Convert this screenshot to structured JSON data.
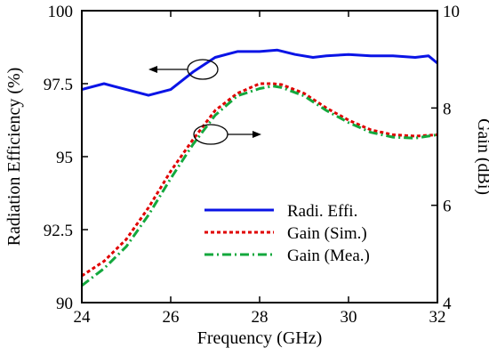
{
  "chart_data": {
    "type": "line",
    "xlabel": "Frequency (GHz)",
    "ylabel_left": "Radiation Efficiency (%)",
    "ylabel_right": "Gain (dBi)",
    "xlim": [
      24,
      32
    ],
    "ylim_left": [
      90,
      100
    ],
    "ylim_right": [
      4,
      10
    ],
    "xticks": [
      24,
      26,
      28,
      30,
      32
    ],
    "xtick_labels": [
      "24",
      "26",
      "28",
      "30",
      "32"
    ],
    "yticks_left": [
      90,
      92.5,
      95,
      97.5,
      100
    ],
    "ytick_labels_left": [
      "90",
      "92.5",
      "95",
      "97.5",
      "100"
    ],
    "yticks_right": [
      4,
      6,
      8,
      10
    ],
    "ytick_labels_right": [
      "4",
      "6",
      "8",
      "10"
    ],
    "grid": false,
    "legend_position": "lower-right",
    "series": [
      {
        "name": "Radi. Effi.",
        "axis": "left",
        "color": "#0a14e6",
        "style": "solid",
        "x": [
          24.0,
          24.5,
          25.0,
          25.5,
          26.0,
          26.5,
          27.0,
          27.5,
          28.0,
          28.4,
          28.8,
          29.2,
          29.5,
          30.0,
          30.5,
          31.0,
          31.5,
          31.8,
          32.0
        ],
        "y": [
          97.3,
          97.5,
          97.3,
          97.1,
          97.3,
          97.9,
          98.4,
          98.6,
          98.6,
          98.65,
          98.5,
          98.4,
          98.45,
          98.5,
          98.45,
          98.45,
          98.4,
          98.45,
          98.2
        ]
      },
      {
        "name": "Gain (Sim.)",
        "axis": "right",
        "color": "#e00000",
        "style": "dotted",
        "x": [
          24.0,
          24.5,
          25.0,
          25.5,
          26.0,
          26.5,
          27.0,
          27.5,
          28.0,
          28.3,
          28.5,
          29.0,
          29.5,
          30.0,
          30.5,
          31.0,
          31.5,
          32.0
        ],
        "y": [
          4.55,
          4.85,
          5.3,
          5.95,
          6.7,
          7.35,
          7.95,
          8.3,
          8.5,
          8.5,
          8.48,
          8.3,
          8.0,
          7.75,
          7.55,
          7.45,
          7.42,
          7.45
        ]
      },
      {
        "name": "Gain (Mea.)",
        "axis": "right",
        "color": "#13a83d",
        "style": "dashdot",
        "x": [
          24.0,
          24.5,
          25.0,
          25.5,
          26.0,
          26.5,
          27.0,
          27.5,
          28.0,
          28.3,
          28.5,
          29.0,
          29.5,
          30.0,
          30.5,
          31.0,
          31.5,
          32.0
        ],
        "y": [
          4.35,
          4.7,
          5.15,
          5.8,
          6.55,
          7.25,
          7.85,
          8.25,
          8.4,
          8.45,
          8.42,
          8.25,
          7.95,
          7.7,
          7.5,
          7.4,
          7.38,
          7.45
        ]
      }
    ]
  }
}
